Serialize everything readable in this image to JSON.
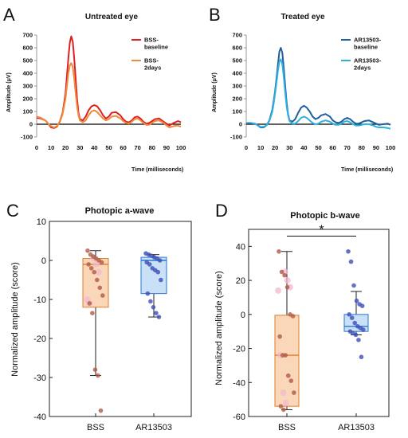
{
  "panels": {
    "A": {
      "letter": "A",
      "title": "Untreated eye",
      "ylabel": "Amplitude (μV)",
      "xlabel": "Time (milliseconds)"
    },
    "B": {
      "letter": "B",
      "title": "Treated eye",
      "ylabel": "Amplitude (μV)",
      "xlabel": "Time (milliseconds)"
    },
    "C": {
      "letter": "C",
      "title": "Photopic a-wave",
      "ylabel": "Normalized amplitude (score)"
    },
    "D": {
      "letter": "D",
      "title": "Photopic b-wave",
      "ylabel": "Normalized amplitude (score)",
      "significance": "*"
    }
  },
  "colors": {
    "bss_baseline": "#e02020",
    "bss_2days": "#f08a3c",
    "ar_baseline": "#1f5f9e",
    "ar_2days": "#2fb0e0",
    "box_bss_fill": "#fad7b8",
    "box_bss_edge": "#e07a2a",
    "box_ar_fill": "#c9e0f7",
    "box_ar_edge": "#2a78d0",
    "pt_bss": "#b05a45",
    "pt_ar": "#3c4fb8",
    "pt_pink": "#f2b8d0"
  },
  "chart_data": [
    {
      "panel": "A",
      "type": "line",
      "title": "Untreated eye",
      "xlabel": "Time (milliseconds)",
      "ylabel": "Amplitude (μV)",
      "xlim": [
        0,
        100
      ],
      "ylim": [
        -100,
        700
      ],
      "xticks": [
        0,
        10,
        20,
        30,
        40,
        50,
        60,
        70,
        80,
        90,
        100
      ],
      "yticks": [
        -100,
        0,
        100,
        200,
        300,
        400,
        500,
        600,
        700
      ],
      "legend_position": "top-right",
      "series": [
        {
          "name": "BSS-baseline",
          "x": [
            0,
            3,
            6,
            8,
            10,
            12,
            14,
            16,
            18,
            20,
            21,
            22,
            23,
            24,
            25,
            26,
            27,
            28,
            29,
            30,
            32,
            34,
            36,
            38,
            40,
            42,
            44,
            46,
            48,
            50,
            52,
            55,
            58,
            60,
            62,
            64,
            66,
            68,
            70,
            72,
            74,
            76,
            78,
            80,
            82,
            85,
            88,
            90,
            92,
            95,
            98,
            100
          ],
          "y": [
            50,
            45,
            30,
            5,
            -25,
            -30,
            -20,
            20,
            90,
            240,
            380,
            520,
            640,
            690,
            650,
            520,
            360,
            200,
            90,
            40,
            30,
            60,
            110,
            140,
            150,
            140,
            110,
            70,
            45,
            60,
            90,
            95,
            70,
            40,
            20,
            15,
            30,
            55,
            60,
            45,
            20,
            5,
            10,
            25,
            40,
            45,
            20,
            5,
            -10,
            10,
            25,
            15
          ]
        },
        {
          "name": "BSS-2days",
          "x": [
            0,
            3,
            6,
            8,
            10,
            12,
            14,
            16,
            18,
            20,
            21,
            22,
            23,
            24,
            25,
            26,
            27,
            28,
            29,
            30,
            32,
            34,
            36,
            38,
            40,
            42,
            44,
            46,
            48,
            50,
            52,
            55,
            58,
            60,
            62,
            64,
            66,
            68,
            70,
            72,
            74,
            76,
            78,
            80,
            82,
            85,
            88,
            90,
            92,
            95,
            98,
            100
          ],
          "y": [
            60,
            50,
            30,
            5,
            -15,
            -25,
            -15,
            15,
            80,
            200,
            300,
            400,
            460,
            480,
            450,
            360,
            250,
            140,
            70,
            30,
            15,
            30,
            70,
            100,
            110,
            95,
            70,
            45,
            30,
            40,
            60,
            65,
            45,
            25,
            10,
            5,
            20,
            40,
            45,
            30,
            10,
            -5,
            -5,
            10,
            25,
            30,
            10,
            -10,
            -25,
            -15,
            -10,
            -20
          ]
        }
      ]
    },
    {
      "panel": "B",
      "type": "line",
      "title": "Treated eye",
      "xlabel": "Time (milliseconds)",
      "ylabel": "Amplitude (μV)",
      "xlim": [
        0,
        100
      ],
      "ylim": [
        -100,
        700
      ],
      "xticks": [
        0,
        10,
        20,
        30,
        40,
        50,
        60,
        70,
        80,
        90,
        100
      ],
      "yticks": [
        -100,
        0,
        100,
        200,
        300,
        400,
        500,
        600,
        700
      ],
      "legend_position": "top-right",
      "series": [
        {
          "name": "AR13503-baseline",
          "x": [
            0,
            3,
            6,
            8,
            10,
            12,
            14,
            16,
            18,
            19,
            20,
            21,
            22,
            23,
            24,
            25,
            26,
            27,
            28,
            29,
            30,
            32,
            34,
            36,
            38,
            40,
            42,
            44,
            46,
            48,
            50,
            52,
            55,
            58,
            60,
            62,
            64,
            66,
            68,
            70,
            72,
            74,
            76,
            78,
            80,
            82,
            85,
            88,
            90,
            92,
            95,
            98,
            100
          ],
          "y": [
            10,
            10,
            5,
            -10,
            -25,
            -25,
            -10,
            30,
            110,
            180,
            260,
            360,
            470,
            570,
            600,
            560,
            440,
            300,
            170,
            80,
            30,
            20,
            40,
            90,
            130,
            145,
            130,
            100,
            60,
            40,
            50,
            70,
            80,
            60,
            30,
            15,
            10,
            20,
            40,
            50,
            40,
            20,
            5,
            5,
            15,
            25,
            30,
            15,
            5,
            -5,
            0,
            5,
            -5
          ]
        },
        {
          "name": "AR13503-2days",
          "x": [
            0,
            3,
            6,
            8,
            10,
            12,
            14,
            16,
            18,
            19,
            20,
            21,
            22,
            23,
            24,
            25,
            26,
            27,
            28,
            29,
            30,
            32,
            34,
            36,
            38,
            40,
            42,
            44,
            46,
            48,
            50,
            52,
            55,
            58,
            60,
            62,
            64,
            66,
            68,
            70,
            72,
            74,
            76,
            78,
            80,
            82,
            85,
            88,
            90,
            92,
            95,
            98,
            100
          ],
          "y": [
            10,
            10,
            5,
            -10,
            -20,
            -20,
            -10,
            25,
            95,
            160,
            240,
            330,
            420,
            490,
            510,
            470,
            370,
            250,
            140,
            70,
            25,
            5,
            5,
            25,
            50,
            60,
            50,
            30,
            10,
            0,
            5,
            20,
            30,
            20,
            5,
            -5,
            -5,
            5,
            20,
            25,
            15,
            0,
            -10,
            -10,
            -5,
            0,
            0,
            -10,
            -20,
            -25,
            -25,
            -30,
            -35
          ]
        }
      ]
    },
    {
      "panel": "C",
      "type": "box",
      "title": "Photopic a-wave",
      "ylabel": "Normalized amplitude (score)",
      "ylim": [
        -40,
        10
      ],
      "yticks": [
        -40,
        -30,
        -20,
        -10,
        0,
        10
      ],
      "categories": [
        "BSS",
        "AR13503"
      ],
      "boxes": [
        {
          "category": "BSS",
          "whisker_low": -29.5,
          "q1": -12,
          "median": -1,
          "q3": 0.5,
          "whisker_high": 2.5
        },
        {
          "category": "AR13503",
          "whisker_low": -14.5,
          "q1": -8.5,
          "median": 0,
          "q3": 0.8,
          "whisker_high": 1.5
        }
      ],
      "points": [
        {
          "category": "BSS",
          "values": [
            2.5,
            1.5,
            1,
            0.5,
            0,
            -0.5,
            -1,
            -2,
            -3,
            -5,
            -7,
            -9,
            -11,
            -13.5,
            -28,
            -29.5,
            -38.5
          ]
        },
        {
          "category": "AR13503",
          "values": [
            1.8,
            1.5,
            1.2,
            0.8,
            0.5,
            0,
            -0.5,
            -1,
            -2,
            -2.5,
            -3,
            -5,
            -8.5,
            -10.5,
            -12,
            -13.5,
            -14.5
          ]
        }
      ],
      "pink_points": [
        {
          "category": "BSS",
          "values": [
            0.5,
            -1,
            -3,
            -10,
            -11
          ]
        }
      ]
    },
    {
      "panel": "D",
      "type": "box",
      "title": "Photopic b-wave",
      "ylabel": "Normalized amplitude (score)",
      "ylim": [
        -60,
        50
      ],
      "yticks": [
        -60,
        -40,
        -20,
        0,
        20,
        40
      ],
      "categories": [
        "BSS",
        "AR13503"
      ],
      "significance": {
        "between": [
          "BSS",
          "AR13503"
        ],
        "label": "*",
        "y": 46
      },
      "boxes": [
        {
          "category": "BSS",
          "whisker_low": -56,
          "q1": -54,
          "median": -24,
          "q3": -0.5,
          "whisker_high": 37
        },
        {
          "category": "AR13503",
          "whisker_low": -12,
          "q1": -10,
          "median": -7,
          "q3": 0,
          "whisker_high": 13.5
        }
      ],
      "points": [
        {
          "category": "BSS",
          "values": [
            37,
            25,
            23,
            16,
            0,
            -1,
            -13,
            -24,
            -24,
            -36,
            -39,
            -46,
            -54,
            -56
          ]
        },
        {
          "category": "AR13503",
          "values": [
            37,
            31,
            17,
            8,
            6,
            5,
            0,
            -2,
            -5,
            -7,
            -8,
            -9,
            -10,
            -11,
            -12,
            -15,
            -25
          ]
        }
      ],
      "pink_points": [
        {
          "category": "BSS",
          "values": [
            25,
            20,
            16,
            14,
            -24,
            -46,
            -52
          ]
        }
      ]
    }
  ]
}
